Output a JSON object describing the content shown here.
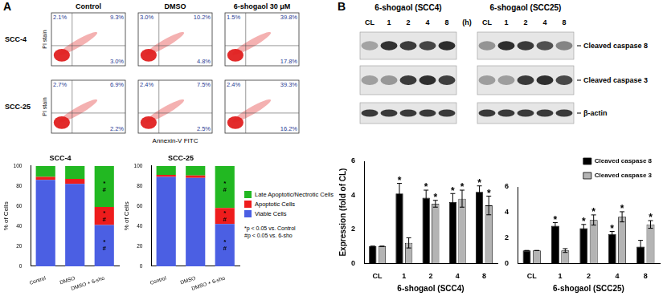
{
  "panel_labels": [
    "A",
    "B"
  ],
  "flow_cytometry": {
    "columns": [
      "Control",
      "DMSO",
      "6-shogaol 30 μM"
    ],
    "x_label": "Annexin-V FITC",
    "y_label": "PI stain",
    "rows": [
      {
        "label": "SCC-4",
        "quadrants": [
          {
            "UL": "2.1%",
            "UR": "9.3%",
            "LR": "3.0%"
          },
          {
            "UL": "3.0%",
            "UR": "10.2%",
            "LR": "4.8%"
          },
          {
            "UL": "1.5%",
            "UR": "39.8%",
            "LR": "17.8%"
          }
        ]
      },
      {
        "label": "SCC-25",
        "quadrants": [
          {
            "UL": "2.7%",
            "UR": "6.9%",
            "LR": "2.2%"
          },
          {
            "UL": "2.4%",
            "UR": "7.5%",
            "LR": "2.5%"
          },
          {
            "UL": "2.4%",
            "UR": "39.3%",
            "LR": "16.2%"
          }
        ]
      }
    ]
  },
  "western_blot": {
    "blots": [
      {
        "title": "6-shogaol (SCC4)"
      },
      {
        "title": "6-shogaol (SCC25)"
      }
    ],
    "lanes": [
      "CL",
      "1",
      "2",
      "4",
      "8"
    ],
    "time_unit": "(h)",
    "bands": [
      "Cleaved caspase 8",
      "Cleaved caspase 3",
      "β-actin"
    ]
  },
  "chart_data": [
    {
      "type": "bar",
      "stacked": true,
      "title": "SCC-4",
      "categories": [
        "Control",
        "DMSO",
        "DMSO + 6-sho"
      ],
      "series": [
        {
          "name": "Viable Cells",
          "color": "#4b5fe3",
          "values": [
            86,
            82,
            41
          ]
        },
        {
          "name": "Apoptotic Cells",
          "color": "#ee1c1c",
          "values": [
            3,
            5,
            18
          ]
        },
        {
          "name": "Late Apoptotic/Nectrotic Cells",
          "color": "#22b822",
          "values": [
            11,
            13,
            41
          ]
        }
      ],
      "y_label": "% of Cells",
      "ylim": [
        0,
        100
      ],
      "yticks": [
        0,
        20,
        40,
        60,
        80,
        100
      ],
      "grid": false,
      "annotations": [
        {
          "category": "DMSO + 6-sho",
          "series": "Viable Cells",
          "texts": [
            "*",
            "#"
          ]
        },
        {
          "category": "DMSO + 6-sho",
          "series": "Apoptotic Cells",
          "texts": [
            "*",
            "#"
          ]
        },
        {
          "category": "DMSO + 6-sho",
          "series": "Late Apoptotic/Nectrotic Cells",
          "texts": [
            "*",
            "#"
          ]
        }
      ]
    },
    {
      "type": "bar",
      "stacked": true,
      "title": "SCC-25",
      "categories": [
        "Control",
        "DMSO",
        "DMSO + 6-sho"
      ],
      "series": [
        {
          "name": "Viable Cells",
          "color": "#4b5fe3",
          "values": [
            89,
            88,
            42
          ]
        },
        {
          "name": "Apoptotic Cells",
          "color": "#ee1c1c",
          "values": [
            2,
            2.5,
            16
          ]
        },
        {
          "name": "Late Apoptotic/Nectrotic Cells",
          "color": "#22b822",
          "values": [
            9,
            9.5,
            42
          ]
        }
      ],
      "y_label": "% of Cells",
      "ylim": [
        0,
        100
      ],
      "yticks": [
        0,
        20,
        40,
        60,
        80,
        100
      ],
      "grid": false,
      "legend": "right",
      "notes": [
        "*p < 0.05 vs. Control",
        "#p < 0.05 vs. 6-sho"
      ],
      "annotations": [
        {
          "category": "DMSO + 6-sho",
          "series": "Viable Cells",
          "texts": [
            "*",
            "#"
          ]
        },
        {
          "category": "DMSO + 6-sho",
          "series": "Apoptotic Cells",
          "texts": [
            "*",
            "#"
          ]
        },
        {
          "category": "DMSO + 6-sho",
          "series": "Late Apoptotic/Nectrotic Cells",
          "texts": [
            "*",
            "#"
          ]
        }
      ]
    },
    {
      "type": "bar",
      "x_label": "6-shogaol (SCC4)",
      "y_label": "Expression (fold of CL)",
      "categories": [
        "CL",
        "1",
        "2",
        "4",
        "8"
      ],
      "series": [
        {
          "name": "Cleaved caspase 8",
          "color": "#000000",
          "values": [
            1,
            4.1,
            3.85,
            3.6,
            4.2
          ],
          "errors": [
            0,
            0.6,
            0.45,
            0.5,
            0.35
          ],
          "marks": [
            null,
            "*",
            "*",
            "*",
            "*"
          ]
        },
        {
          "name": "Cleaved caspase 3",
          "color": "#b4b4b4",
          "values": [
            1,
            1.2,
            3.5,
            3.8,
            3.4
          ],
          "errors": [
            0,
            0.3,
            0.2,
            0.5,
            0.55
          ],
          "marks": [
            null,
            null,
            "*",
            "*",
            "*"
          ]
        }
      ],
      "ylim": [
        0,
        6
      ],
      "yticks": [
        0,
        2,
        4,
        6
      ],
      "grid": false
    },
    {
      "type": "bar",
      "x_label": "6-shogaol (SCC25)",
      "categories": [
        "CL",
        "1",
        "2",
        "4",
        "8"
      ],
      "series": [
        {
          "name": "Cleaved caspase 8",
          "color": "#000000",
          "values": [
            1,
            2.95,
            2.75,
            2.3,
            1.3
          ],
          "errors": [
            0,
            0.25,
            0.3,
            0.2,
            0.5
          ],
          "marks": [
            null,
            "*",
            "*",
            "*",
            null
          ]
        },
        {
          "name": "Cleaved caspase 3",
          "color": "#b4b4b4",
          "values": [
            1,
            1.0,
            3.4,
            3.65,
            3.05
          ],
          "errors": [
            0,
            0.15,
            0.4,
            0.4,
            0.3
          ],
          "marks": [
            null,
            null,
            "*",
            "*",
            "*"
          ]
        }
      ],
      "ylim": [
        0,
        6
      ],
      "yticks": [
        0,
        2,
        4,
        6
      ],
      "grid": false,
      "legend": "upper right"
    }
  ]
}
